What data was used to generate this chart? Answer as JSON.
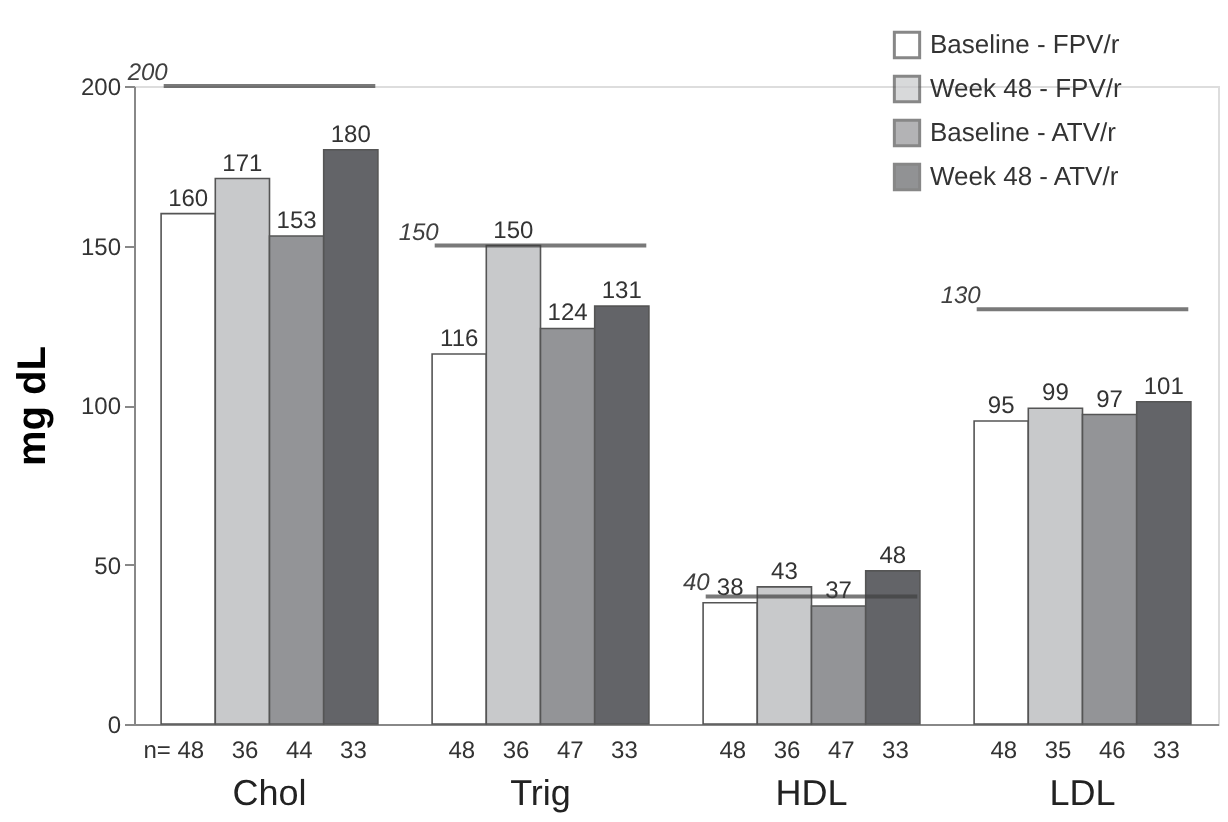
{
  "chart_data": {
    "type": "bar",
    "ylabel": "mg dL",
    "categories": [
      "Chol",
      "Trig",
      "HDL",
      "LDL"
    ],
    "series": [
      {
        "name": "Baseline - FPV/r",
        "color": "#ffffff",
        "values": [
          160,
          116,
          38,
          95
        ]
      },
      {
        "name": "Week 48 - FPV/r",
        "color": "#c8c9cb",
        "values": [
          171,
          150,
          43,
          99
        ]
      },
      {
        "name": "Baseline - ATV/r",
        "color": "#939497",
        "values": [
          153,
          124,
          37,
          97
        ]
      },
      {
        "name": "Week 48 - ATV/r",
        "color": "#636468",
        "values": [
          180,
          131,
          48,
          101
        ]
      }
    ],
    "ylim": [
      0,
      200
    ],
    "yticks": [
      0,
      50,
      100,
      150,
      200
    ],
    "grid": false,
    "legend": "top right",
    "data_labels": true,
    "ref_lines": [
      {
        "axis": "y",
        "value": 200,
        "label": "200",
        "color": "#404040"
      },
      {
        "axis": "y",
        "value": 150,
        "label": "150",
        "color": "#404040"
      },
      {
        "axis": "y",
        "value": 40,
        "label": "40",
        "color": "#404040"
      },
      {
        "axis": "y",
        "value": 130,
        "label": "130",
        "color": "#404040"
      }
    ],
    "annotations": [
      "n= 48",
      "36",
      "44",
      "33",
      "48",
      "36",
      "47",
      "33",
      "48",
      "36",
      "47",
      "33",
      "48",
      "35",
      "46",
      "33"
    ]
  }
}
